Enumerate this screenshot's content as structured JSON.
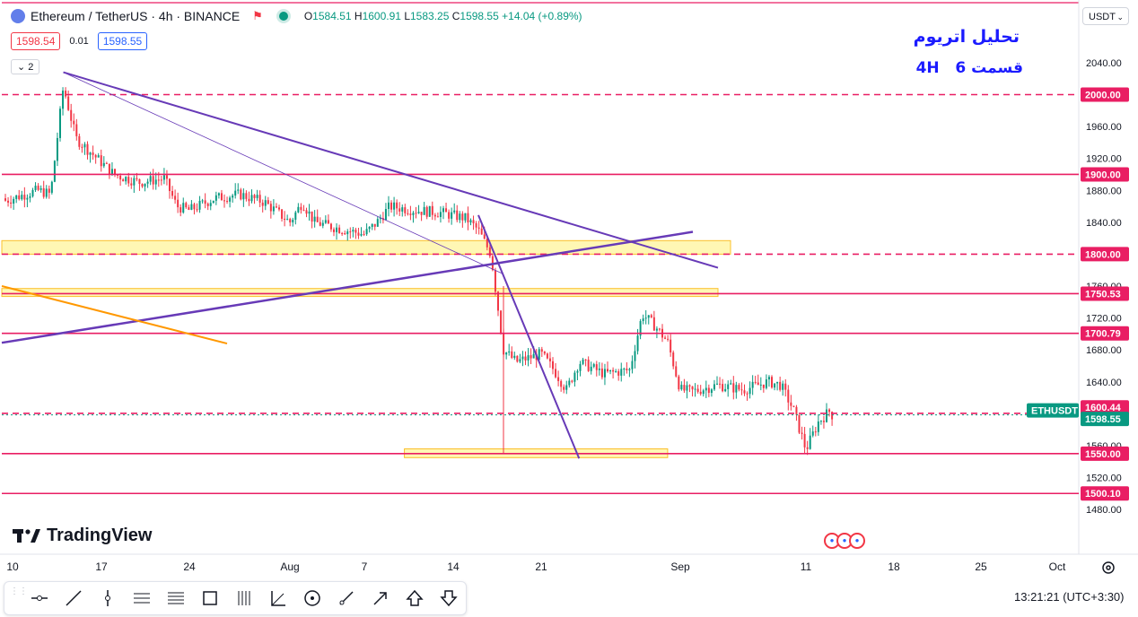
{
  "header": {
    "symbol": "Ethereum / TetherUS · 4h · BINANCE",
    "open_label": "O",
    "open": "1584.51",
    "high_label": "H",
    "high": "1600.91",
    "low_label": "L",
    "low": "1583.25",
    "close_label": "C",
    "close": "1598.55",
    "change": "+14.04 (+0.89%)",
    "sell_price": "1598.54",
    "spread": "0.01",
    "buy_price": "1598.55",
    "indicators_count": "2",
    "currency": "USDT"
  },
  "annotation": {
    "title": "تحلیل اتریوم",
    "subtitle_left": "قسمت 6",
    "subtitle_right": "4H"
  },
  "brand": "TradingView",
  "clock": "13:21:21 (UTC+3:30)",
  "colors": {
    "up": "#089981",
    "down": "#f23645",
    "level": "#e91e63",
    "trendline": "#673ab7",
    "orange_line": "#ff9800",
    "zone": "#fff176"
  },
  "chart_data": {
    "type": "candlestick",
    "symbol": "ETHUSDT",
    "timeframe": "4h",
    "ylim": [
      1463,
      2090
    ],
    "y_ticks": [
      "2040.00",
      "1960.00",
      "1920.00",
      "1880.00",
      "1840.00",
      "1760.00",
      "1720.00",
      "1680.00",
      "1640.00",
      "1560.00",
      "1520.00",
      "1480.00"
    ],
    "x_ticks": [
      "10",
      "17",
      "24",
      "Aug",
      "7",
      "14",
      "21",
      "Sep",
      "11",
      "18",
      "25",
      "Oct"
    ],
    "levels": [
      {
        "value": 2000.0,
        "label": "2000.00",
        "style": "dashed"
      },
      {
        "value": 1900.0,
        "label": "1900.00",
        "style": "solid"
      },
      {
        "value": 1800.0,
        "label": "1800.00",
        "style": "dashed"
      },
      {
        "value": 1750.53,
        "label": "1750.53",
        "style": "solid"
      },
      {
        "value": 1700.79,
        "label": "1700.79",
        "style": "solid"
      },
      {
        "value": 1600.44,
        "label": "1600.44",
        "style": "dashed"
      },
      {
        "value": 1550.0,
        "label": "1550.00",
        "style": "solid"
      },
      {
        "value": 1500.1,
        "label": "1500.10",
        "style": "solid"
      }
    ],
    "last_price": {
      "value": 1598.55,
      "label": "1598.55",
      "tag": "ETHUSDT"
    },
    "zones": [
      {
        "from_date": "2023-07-10",
        "to_date": "2023-09-05",
        "low": 1800,
        "high": 1817
      },
      {
        "from_date": "2023-07-10",
        "to_date": "2023-09-04",
        "low": 1747,
        "high": 1757
      },
      {
        "from_date": "2023-08-11",
        "to_date": "2023-08-31",
        "low": 1545,
        "high": 1556
      }
    ],
    "trendlines": [
      {
        "color": "purple",
        "width": 2,
        "from": [
          "2023-07-14",
          2028
        ],
        "to": [
          "2023-09-04",
          1783
        ]
      },
      {
        "color": "purple",
        "width": 0.8,
        "from": [
          "2023-07-14",
          2028
        ],
        "to": [
          "2023-08-18",
          1775
        ]
      },
      {
        "color": "purple",
        "width": 2.5,
        "from": [
          "2023-07-10",
          1689
        ],
        "to": [
          "2023-09-02",
          1828
        ]
      },
      {
        "color": "purple",
        "width": 2,
        "from": [
          "2023-08-16",
          1849
        ],
        "to": [
          "2023-08-24",
          1544
        ]
      },
      {
        "color": "orange",
        "width": 2,
        "from": [
          "2023-07-10",
          1760
        ],
        "to": [
          "2023-07-27",
          1688
        ]
      }
    ],
    "path": [
      [
        "2023-07-10",
        1870
      ],
      [
        "2023-07-12",
        1880
      ],
      [
        "2023-07-13",
        1875
      ],
      [
        "2023-07-14",
        2010
      ],
      [
        "2023-07-15",
        1945
      ],
      [
        "2023-07-16",
        1930
      ],
      [
        "2023-07-18",
        1900
      ],
      [
        "2023-07-20",
        1890
      ],
      [
        "2023-07-22",
        1895
      ],
      [
        "2023-07-23",
        1860
      ],
      [
        "2023-07-24",
        1855
      ],
      [
        "2023-07-26",
        1870
      ],
      [
        "2023-07-28",
        1875
      ],
      [
        "2023-07-30",
        1865
      ],
      [
        "2023-08-01",
        1840
      ],
      [
        "2023-08-02",
        1865
      ],
      [
        "2023-08-03",
        1840
      ],
      [
        "2023-08-05",
        1832
      ],
      [
        "2023-08-07",
        1825
      ],
      [
        "2023-08-08",
        1840
      ],
      [
        "2023-08-09",
        1860
      ],
      [
        "2023-08-11",
        1855
      ],
      [
        "2023-08-13",
        1852
      ],
      [
        "2023-08-15",
        1845
      ],
      [
        "2023-08-16",
        1830
      ],
      [
        "2023-08-17",
        1800
      ],
      [
        "2023-08-18",
        1680
      ],
      [
        "2023-08-19",
        1665
      ],
      [
        "2023-08-21",
        1675
      ],
      [
        "2023-08-22",
        1655
      ],
      [
        "2023-08-23",
        1630
      ],
      [
        "2023-08-24",
        1665
      ],
      [
        "2023-08-26",
        1650
      ],
      [
        "2023-08-28",
        1655
      ],
      [
        "2023-08-29",
        1725
      ],
      [
        "2023-08-30",
        1710
      ],
      [
        "2023-08-31",
        1690
      ],
      [
        "2023-09-01",
        1630
      ],
      [
        "2023-09-02",
        1628
      ],
      [
        "2023-09-04",
        1636
      ],
      [
        "2023-09-06",
        1630
      ],
      [
        "2023-09-07",
        1635
      ],
      [
        "2023-09-08",
        1640
      ],
      [
        "2023-09-09",
        1636
      ],
      [
        "2023-09-10",
        1605
      ],
      [
        "2023-09-11",
        1555
      ],
      [
        "2023-09-12",
        1590
      ],
      [
        "2023-09-13",
        1605
      ],
      [
        "2023-09-13",
        1598.55
      ]
    ]
  }
}
